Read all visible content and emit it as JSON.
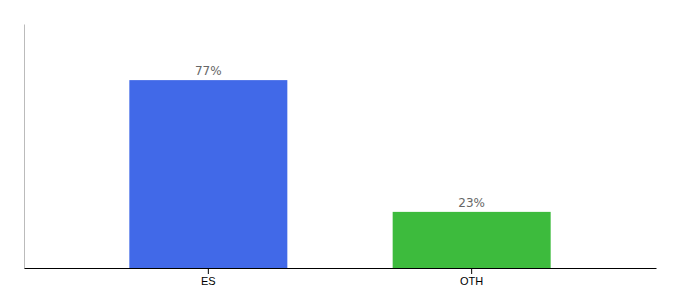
{
  "chart_data": {
    "type": "bar",
    "categories": [
      "ES",
      "OTH"
    ],
    "values": [
      77,
      23
    ],
    "colors": [
      "#4169e8",
      "#3dbb3d"
    ],
    "ylim": [
      0,
      100
    ],
    "data_labels": true,
    "value_labels": [
      "77%",
      "23%"
    ],
    "tick_labels": "x"
  }
}
